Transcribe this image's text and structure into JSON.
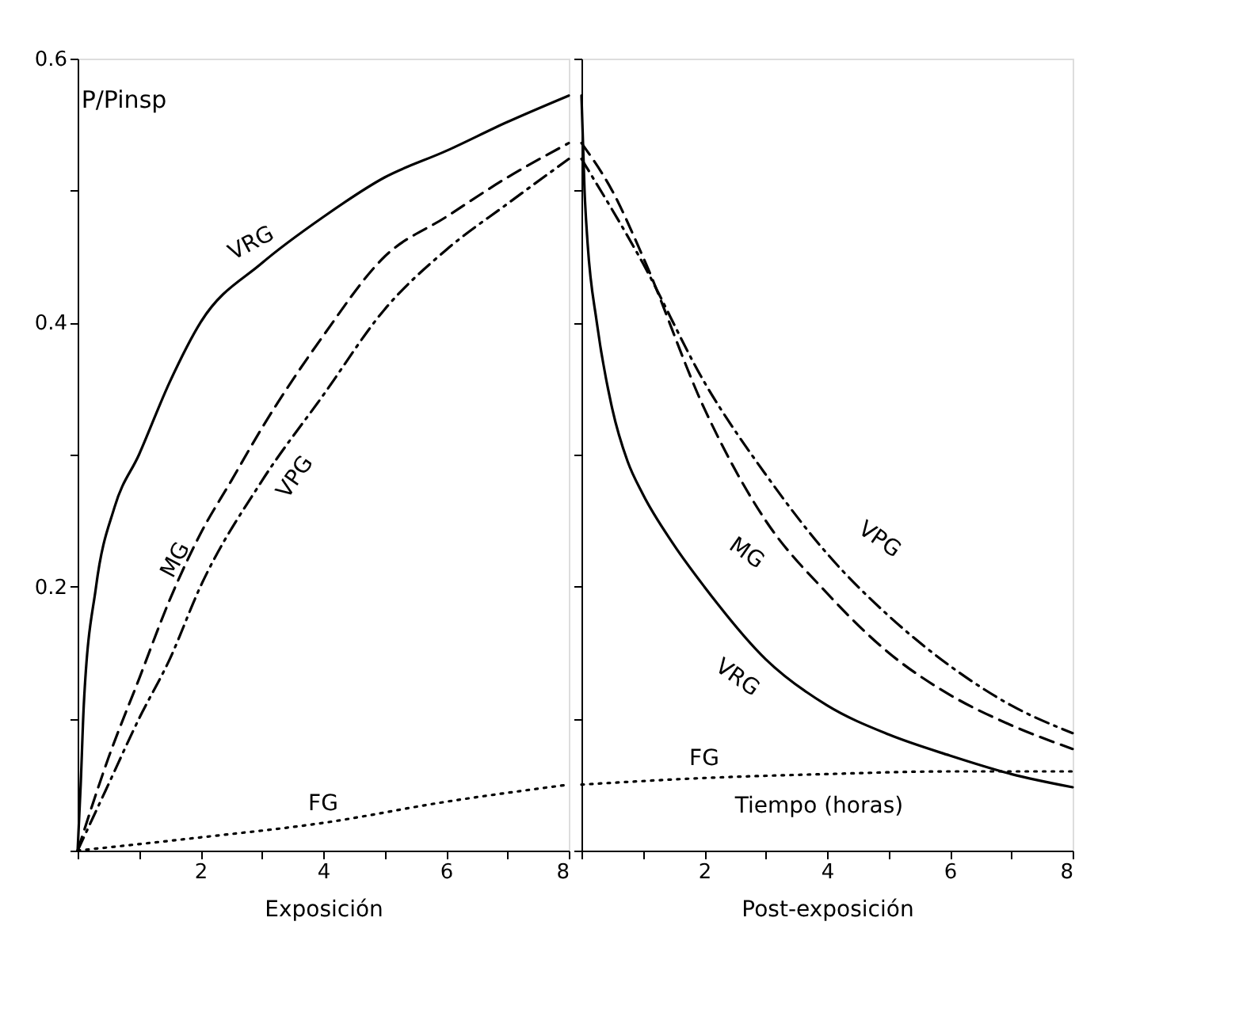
{
  "chart_data": [
    {
      "type": "line",
      "ylabel": "P/Pinsp",
      "xlabel": "Exposición",
      "xlim": [
        0,
        8
      ],
      "ylim": [
        0,
        0.6
      ],
      "xticks": [
        {
          "value": 0,
          "label": null
        },
        {
          "value": 1,
          "label": null
        },
        2,
        {
          "value": 3,
          "label": null
        },
        4,
        {
          "value": 5,
          "label": null
        },
        6,
        {
          "value": 7,
          "label": null
        },
        8
      ],
      "yticks": [
        {
          "value": 0,
          "label": null
        },
        {
          "value": 0.1,
          "label": null
        },
        0.2,
        {
          "value": 0.3,
          "label": null
        },
        0.4,
        {
          "value": 0.5,
          "label": null
        },
        0.6
      ],
      "grid": false,
      "marker": "none",
      "series": [
        {
          "name": "VRG",
          "color": "#000000",
          "line_style": "solid",
          "x": [
            0,
            0.05,
            0.1,
            0.3,
            0.6,
            1,
            1.5,
            2,
            3,
            4,
            5,
            6,
            7,
            8
          ],
          "values": [
            0,
            0.05,
            0.11,
            0.2,
            0.26,
            0.3,
            0.355,
            0.4,
            0.445,
            0.48,
            0.51,
            0.53,
            0.552,
            0.572
          ]
        },
        {
          "name": "MG",
          "color": "#000000",
          "line_style": "dashed",
          "x": [
            0,
            0.5,
            1,
            1.5,
            2,
            2.5,
            3,
            4,
            5,
            6,
            7,
            8
          ],
          "values": [
            0,
            0.07,
            0.13,
            0.19,
            0.24,
            0.28,
            0.32,
            0.39,
            0.45,
            0.48,
            0.51,
            0.536
          ]
        },
        {
          "name": "VPG",
          "color": "#000000",
          "line_style": "dashdot",
          "x": [
            0,
            0.5,
            1,
            1.5,
            2,
            3,
            4,
            5,
            6,
            7,
            8
          ],
          "values": [
            0,
            0.05,
            0.1,
            0.145,
            0.2,
            0.28,
            0.345,
            0.41,
            0.455,
            0.49,
            0.524
          ]
        },
        {
          "name": "FG",
          "color": "#000000",
          "line_style": "dotted",
          "x": [
            0,
            2,
            4,
            6,
            8
          ],
          "values": [
            0,
            0.01,
            0.021,
            0.037,
            0.05
          ]
        }
      ]
    },
    {
      "type": "line",
      "xlabel": "Post-exposición",
      "xlim": [
        0,
        8
      ],
      "ylim": [
        0,
        0.6
      ],
      "tick_labels": "x",
      "xticks": [
        {
          "value": 0,
          "label": null
        },
        {
          "value": 1,
          "label": null
        },
        2,
        {
          "value": 3,
          "label": null
        },
        4,
        {
          "value": 5,
          "label": null
        },
        6,
        {
          "value": 7,
          "label": null
        },
        8
      ],
      "yticks": [
        {
          "value": 0,
          "label": null
        },
        {
          "value": 0.1,
          "label": null
        },
        {
          "value": 0.2,
          "label": null
        },
        {
          "value": 0.3,
          "label": null
        },
        {
          "value": 0.4,
          "label": null
        },
        {
          "value": 0.5,
          "label": null
        },
        {
          "value": 0.6,
          "label": null
        }
      ],
      "grid": false,
      "marker": "none",
      "series": [
        {
          "name": "VRG",
          "color": "#000000",
          "line_style": "solid",
          "x": [
            0,
            0.05,
            0.1,
            0.25,
            0.5,
            0.75,
            1,
            1.5,
            2,
            3,
            4,
            5,
            6,
            7,
            8
          ],
          "values": [
            0.572,
            0.5,
            0.46,
            0.4,
            0.335,
            0.295,
            0.27,
            0.232,
            0.2,
            0.145,
            0.11,
            0.088,
            0.072,
            0.058,
            0.048
          ]
        },
        {
          "name": "MG",
          "color": "#000000",
          "line_style": "dashed",
          "x": [
            0,
            0.5,
            1,
            2,
            3,
            4,
            5,
            6,
            7,
            8
          ],
          "values": [
            0.536,
            0.5,
            0.45,
            0.335,
            0.25,
            0.195,
            0.15,
            0.118,
            0.095,
            0.077
          ]
        },
        {
          "name": "VPG",
          "color": "#000000",
          "line_style": "dashdot",
          "x": [
            0,
            1,
            2,
            3,
            4,
            5,
            6,
            7,
            8
          ],
          "values": [
            0.524,
            0.445,
            0.355,
            0.285,
            0.225,
            0.178,
            0.14,
            0.11,
            0.089
          ]
        },
        {
          "name": "FG",
          "color": "#000000",
          "line_style": "dotted",
          "x": [
            0,
            2,
            4,
            6,
            8
          ],
          "values": [
            0.05,
            0.055,
            0.058,
            0.06,
            0.06
          ]
        }
      ],
      "annotations": [
        "Tiempo (horas)"
      ]
    }
  ]
}
